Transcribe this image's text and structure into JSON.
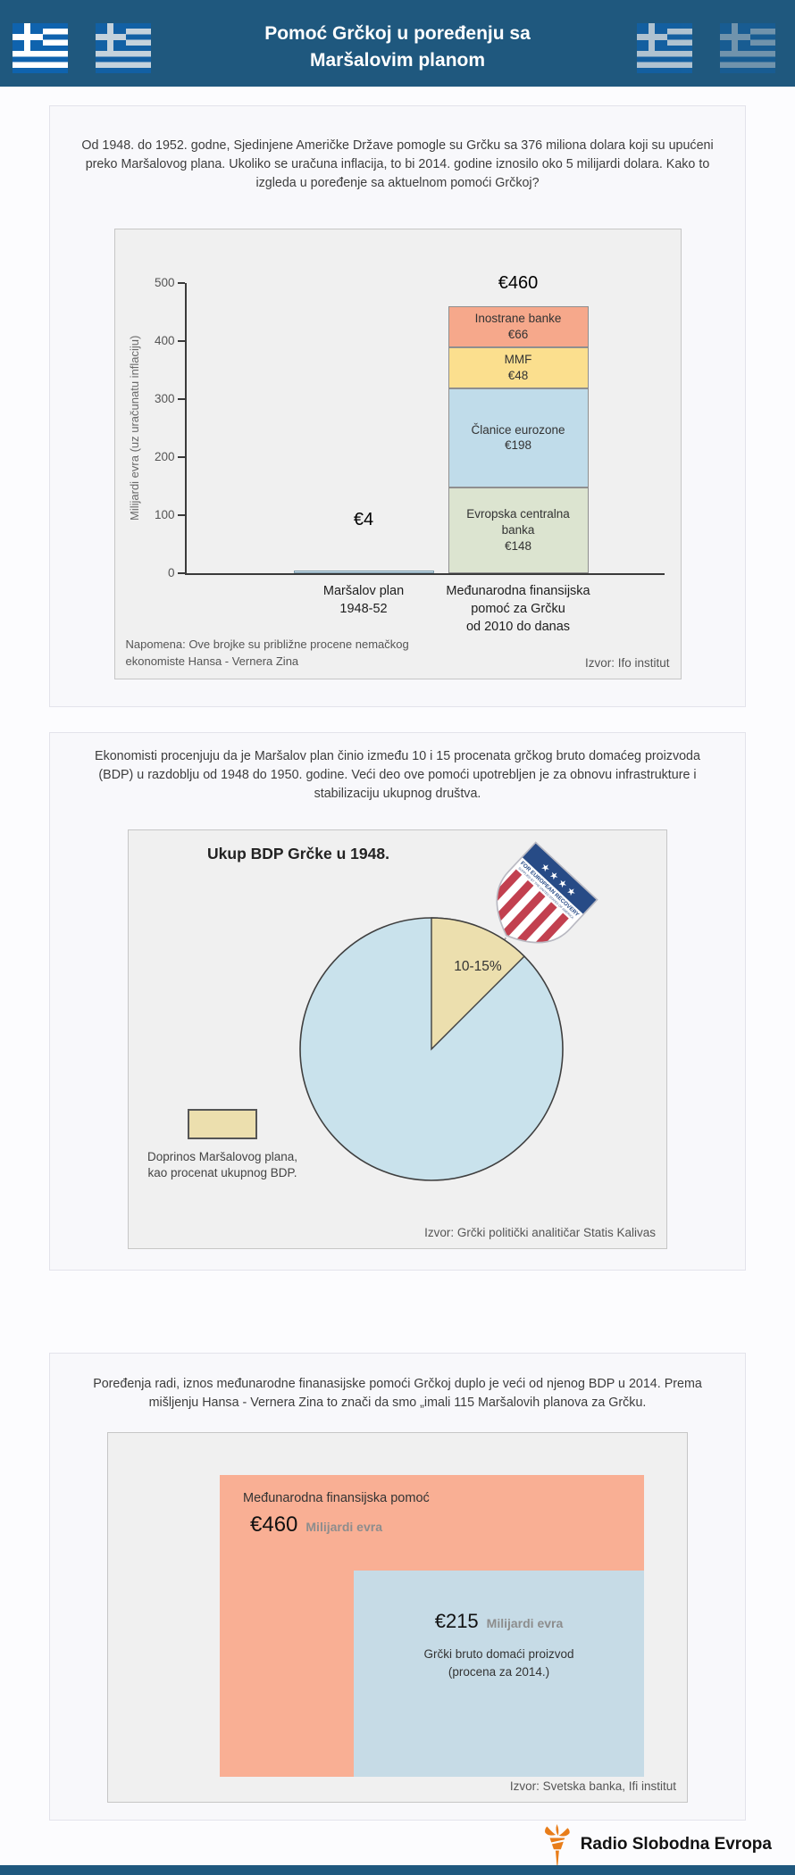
{
  "header": {
    "title_line1": "Pomoć Grčkoj u poređenju sa",
    "title_line2": "Maršalovim planom"
  },
  "section1": {
    "intro": "Od 1948. do 1952. godne, Sjedinjene Američke Države pomogle su Grčku sa 376 miliona dolara koji su upućeni preko Maršalovog plana. Ukoliko se uračuna inflacija, to bi 2014. godine iznosilo oko 5 milijardi dolara. Kako to izgleda u poređenje sa aktuelnom pomoći Grčkoj?"
  },
  "section2": {
    "intro": "Ekonomisti procenjuju da je Maršalov plan činio između 10 i 15 procenata grčkog bruto domaćeg proizvoda (BDP) u razdoblju od 1948 do 1950. godine. Veći deo ove pomoći upotrebljen je za obnovu infrastrukture i stabilizaciju ukupnog društva."
  },
  "section3": {
    "intro": "Poređenja radi, iznos međunarodne finanasijske pomoći Grčkoj duplo je veći od njenog BDP u 2014. Prema mišljenju Hansa - Vernera Zina to znači da smo „imali 115 Maršalovih planova za Grčku."
  },
  "chart_data": [
    {
      "type": "bar",
      "stacked": true,
      "ylabel": "Milijardi evra (uz uračunatu inflaciju)",
      "ylim": [
        0,
        500
      ],
      "yticks": [
        0,
        100,
        200,
        300,
        400,
        500
      ],
      "grid": false,
      "bars": [
        {
          "category": [
            "Maršalov plan",
            "1948-52"
          ],
          "total": 4,
          "total_label": "€4",
          "segments": [
            {
              "name": "",
              "value": 4,
              "value_label": "",
              "color": "#cfe4f1",
              "border": "#7a98a8"
            }
          ]
        },
        {
          "category": [
            "Međunarodna finansijska",
            "pomoć za Grčku",
            "od 2010 do danas"
          ],
          "total": 460,
          "total_label": "€460",
          "segments": [
            {
              "name": "Evropska centralna banka",
              "value": 148,
              "value_label": "€148",
              "color": "#dce4d0"
            },
            {
              "name": "Članice eurozone",
              "value": 198,
              "value_label": "€198",
              "color": "#c0dcea"
            },
            {
              "name": "MMF",
              "value": 48,
              "value_label": "€48",
              "color": "#fbdf8e"
            },
            {
              "name": "Inostrane banke",
              "value": 66,
              "value_label": "€66",
              "color": "#f6a88b"
            }
          ]
        }
      ],
      "note": "Napomena: Ove brojke su približne procene nemačkog ekonomiste Hansa - Vernera Zina",
      "source": "Izvor: Ifo institut"
    },
    {
      "type": "pie",
      "title": "Ukup BDP Grčke u 1948.",
      "slices": [
        {
          "label": "Doprinos Maršalovog plana",
          "value_label": "10-15%",
          "percent": 12.5,
          "color": "#ecdfae"
        },
        {
          "label": "",
          "value_label": "",
          "percent": 87.5,
          "color": "#c9e2ec"
        }
      ],
      "legend": {
        "swatch_color": "#ecdfae",
        "line1": "Doprinos Maršalovog plana,",
        "line2": "kao procenat ukupnog BDP."
      },
      "badge": {
        "stars": "★ ★ ★ ★",
        "line1": "FOR EUROPEAN RECOVERY",
        "line2": "SUPPLIED BY THE UNITED STATES OF AMERICA"
      },
      "source": "Izvor: Grčki politički analitičar Statis Kalivas"
    },
    {
      "type": "area-comparison",
      "outer": {
        "label": "Međunarodna finansijska pomoć",
        "value": 460,
        "value_label": "€460",
        "unit": "Milijardi evra",
        "color": "#f9af94"
      },
      "inner": {
        "label_line1": "Grčki bruto domaći proizvod",
        "label_line2": "(procena za 2014.)",
        "value": 215,
        "value_label": "€215",
        "unit": "Milijardi evra",
        "color": "#c6dbe6"
      },
      "source": "Izvor: Svetska banka, Ifi institut"
    }
  ],
  "footer": {
    "brand": "Radio Slobodna Evropa"
  },
  "colors": {
    "header_bg": "#1f587e",
    "panel_bg": "#f0f0f0",
    "brand_orange": "#e87d1a"
  }
}
